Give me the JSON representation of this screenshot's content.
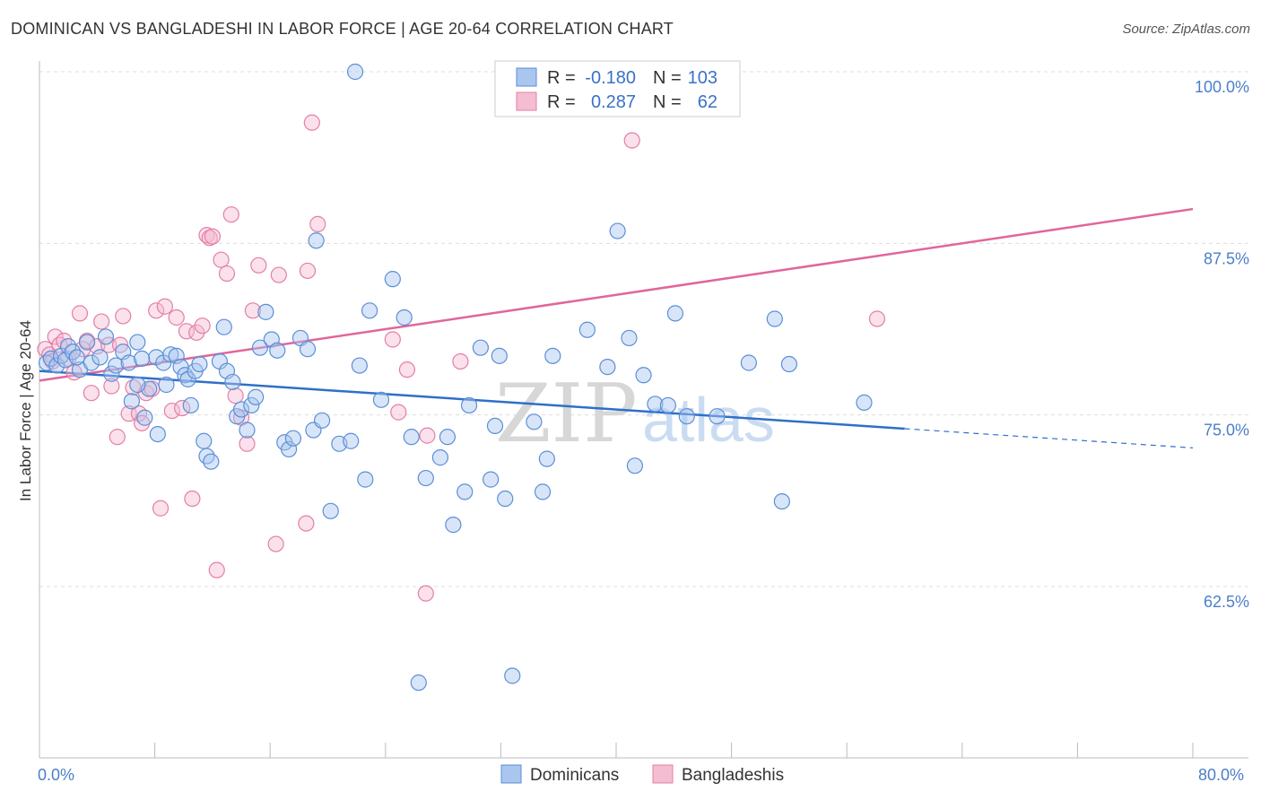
{
  "title": "DOMINICAN VS BANGLADESHI IN LABOR FORCE | AGE 20-64 CORRELATION CHART",
  "source": "Source: ZipAtlas.com",
  "watermark": {
    "zip": "ZIP",
    "atlas": "atlas"
  },
  "colors": {
    "dominican": "#5b8fd6",
    "dominican_fill": "#a9c6ef",
    "bangladeshi": "#e57ea6",
    "bangladeshi_fill": "#f4bdd2",
    "dominican_line": "#2f6fc9",
    "bangladeshi_line": "#e0669a",
    "tick_text": "#4a7fc8"
  },
  "legend": {
    "rows": [
      {
        "r_label": "R =",
        "r_value": "-0.180",
        "n_label": "N =",
        "n_value": "103"
      },
      {
        "r_label": "R =",
        "r_value": "0.287",
        "n_label": "N =",
        "n_value": "62"
      }
    ]
  },
  "bottom_legend": [
    "Dominicans",
    "Bangladeshis"
  ],
  "chart_data": {
    "type": "scatter",
    "title": "DOMINICAN VS BANGLADESHI IN LABOR FORCE | AGE 20-64 CORRELATION CHART",
    "xlabel": "",
    "ylabel": "In Labor Force | Age 20-64",
    "xlim": [
      0,
      80
    ],
    "ylim": [
      50,
      102
    ],
    "x_tick_labels": [
      "0.0%",
      "80.0%"
    ],
    "y_ticks": [
      62.5,
      75.0,
      87.5,
      100.0
    ],
    "y_tick_labels": [
      "62.5%",
      "75.0%",
      "87.5%",
      "100.0%"
    ],
    "grid": "horizontal dashed",
    "legend_placement": "top-center",
    "series": [
      {
        "name": "Dominicans",
        "r": -0.18,
        "n": 103,
        "trend": {
          "x": [
            0,
            60
          ],
          "y": [
            78.2,
            74.0
          ],
          "dashed_extension": {
            "x": [
              60,
              80
            ],
            "y": [
              74.0,
              72.6
            ]
          }
        },
        "points": [
          [
            0.5,
            78.8
          ],
          [
            0.8,
            79.1
          ],
          [
            1.2,
            78.6
          ],
          [
            1.5,
            79.3
          ],
          [
            1.8,
            79.0
          ],
          [
            2.0,
            80.0
          ],
          [
            2.3,
            79.6
          ],
          [
            2.8,
            78.3
          ],
          [
            3.3,
            80.3
          ],
          [
            3.6,
            78.8
          ],
          [
            4.2,
            79.2
          ],
          [
            4.6,
            80.7
          ],
          [
            5.0,
            78.0
          ],
          [
            5.3,
            78.6
          ],
          [
            5.8,
            79.6
          ],
          [
            6.2,
            78.8
          ],
          [
            6.4,
            76.0
          ],
          [
            6.8,
            80.3
          ],
          [
            7.3,
            74.8
          ],
          [
            7.6,
            76.9
          ],
          [
            8.1,
            79.2
          ],
          [
            8.2,
            73.6
          ],
          [
            8.6,
            78.8
          ],
          [
            8.8,
            77.2
          ],
          [
            9.1,
            79.4
          ],
          [
            9.5,
            79.3
          ],
          [
            9.8,
            78.5
          ],
          [
            10.1,
            77.9
          ],
          [
            10.3,
            77.6
          ],
          [
            10.5,
            75.7
          ],
          [
            10.8,
            78.2
          ],
          [
            11.1,
            78.7
          ],
          [
            11.4,
            73.1
          ],
          [
            11.6,
            72.0
          ],
          [
            11.9,
            71.6
          ],
          [
            12.5,
            78.9
          ],
          [
            12.8,
            81.4
          ],
          [
            13.0,
            78.2
          ],
          [
            13.4,
            77.4
          ],
          [
            13.7,
            74.9
          ],
          [
            14.0,
            75.4
          ],
          [
            14.4,
            73.9
          ],
          [
            14.7,
            75.7
          ],
          [
            15.0,
            76.3
          ],
          [
            15.3,
            79.9
          ],
          [
            15.7,
            82.5
          ],
          [
            16.1,
            80.5
          ],
          [
            16.5,
            79.7
          ],
          [
            17.0,
            73.0
          ],
          [
            17.3,
            72.5
          ],
          [
            17.6,
            73.3
          ],
          [
            18.1,
            80.6
          ],
          [
            18.6,
            79.8
          ],
          [
            19.0,
            73.9
          ],
          [
            19.2,
            87.7
          ],
          [
            19.6,
            74.6
          ],
          [
            20.2,
            68.0
          ],
          [
            20.8,
            72.9
          ],
          [
            21.6,
            73.1
          ],
          [
            22.2,
            78.6
          ],
          [
            22.6,
            70.3
          ],
          [
            22.9,
            82.6
          ],
          [
            23.7,
            76.1
          ],
          [
            24.5,
            84.9
          ],
          [
            25.3,
            82.1
          ],
          [
            25.8,
            73.4
          ],
          [
            26.3,
            55.5
          ],
          [
            26.8,
            70.4
          ],
          [
            27.8,
            71.9
          ],
          [
            28.3,
            73.4
          ],
          [
            28.7,
            67.0
          ],
          [
            29.5,
            69.4
          ],
          [
            29.8,
            75.7
          ],
          [
            30.6,
            79.9
          ],
          [
            31.3,
            70.3
          ],
          [
            31.6,
            74.2
          ],
          [
            31.9,
            79.3
          ],
          [
            32.3,
            68.9
          ],
          [
            32.8,
            56.0
          ],
          [
            34.3,
            74.5
          ],
          [
            34.9,
            69.4
          ],
          [
            35.2,
            71.8
          ],
          [
            35.6,
            79.3
          ],
          [
            38.0,
            81.2
          ],
          [
            39.4,
            78.5
          ],
          [
            40.1,
            88.4
          ],
          [
            40.9,
            80.6
          ],
          [
            41.3,
            71.3
          ],
          [
            41.9,
            77.9
          ],
          [
            42.7,
            75.8
          ],
          [
            43.6,
            75.7
          ],
          [
            44.1,
            82.4
          ],
          [
            44.9,
            74.9
          ],
          [
            47.0,
            74.9
          ],
          [
            49.2,
            78.8
          ],
          [
            51.0,
            82.0
          ],
          [
            51.5,
            68.7
          ],
          [
            52.0,
            78.7
          ],
          [
            57.2,
            75.9
          ],
          [
            21.9,
            100.0
          ],
          [
            6.8,
            77.2
          ],
          [
            2.6,
            79.2
          ],
          [
            7.1,
            79.1
          ]
        ]
      },
      {
        "name": "Bangladeshis",
        "r": 0.287,
        "n": 62,
        "trend": {
          "x": [
            0,
            80
          ],
          "y": [
            77.5,
            90.0
          ]
        },
        "points": [
          [
            0.4,
            79.8
          ],
          [
            0.7,
            79.4
          ],
          [
            0.9,
            78.9
          ],
          [
            1.1,
            80.7
          ],
          [
            1.4,
            80.1
          ],
          [
            1.7,
            80.4
          ],
          [
            2.0,
            79.1
          ],
          [
            2.4,
            78.1
          ],
          [
            2.8,
            82.4
          ],
          [
            3.0,
            79.8
          ],
          [
            3.3,
            80.4
          ],
          [
            3.6,
            76.6
          ],
          [
            4.0,
            80.0
          ],
          [
            4.3,
            81.8
          ],
          [
            4.8,
            80.1
          ],
          [
            5.0,
            77.1
          ],
          [
            5.4,
            73.4
          ],
          [
            5.6,
            80.1
          ],
          [
            5.8,
            82.2
          ],
          [
            6.2,
            75.1
          ],
          [
            6.5,
            77.0
          ],
          [
            6.9,
            75.1
          ],
          [
            7.1,
            74.4
          ],
          [
            7.4,
            76.6
          ],
          [
            7.8,
            76.9
          ],
          [
            8.1,
            82.6
          ],
          [
            8.4,
            68.2
          ],
          [
            8.7,
            82.9
          ],
          [
            9.2,
            75.3
          ],
          [
            9.5,
            82.1
          ],
          [
            9.9,
            75.5
          ],
          [
            10.2,
            81.1
          ],
          [
            10.6,
            68.9
          ],
          [
            10.9,
            81.0
          ],
          [
            11.3,
            81.5
          ],
          [
            11.6,
            88.1
          ],
          [
            11.8,
            87.9
          ],
          [
            12.3,
            63.7
          ],
          [
            12.6,
            86.3
          ],
          [
            13.0,
            85.3
          ],
          [
            13.3,
            89.6
          ],
          [
            13.6,
            76.4
          ],
          [
            14.0,
            74.8
          ],
          [
            14.4,
            72.9
          ],
          [
            14.8,
            82.6
          ],
          [
            15.2,
            85.9
          ],
          [
            16.4,
            65.6
          ],
          [
            16.6,
            85.2
          ],
          [
            18.5,
            67.1
          ],
          [
            18.6,
            85.5
          ],
          [
            18.9,
            96.3
          ],
          [
            19.3,
            88.9
          ],
          [
            24.5,
            80.5
          ],
          [
            24.9,
            75.2
          ],
          [
            25.5,
            78.3
          ],
          [
            26.8,
            62.0
          ],
          [
            26.9,
            73.5
          ],
          [
            29.2,
            78.9
          ],
          [
            34.0,
            99.0
          ],
          [
            41.1,
            95.0
          ],
          [
            58.1,
            82.0
          ],
          [
            12.0,
            88.0
          ]
        ]
      }
    ]
  }
}
